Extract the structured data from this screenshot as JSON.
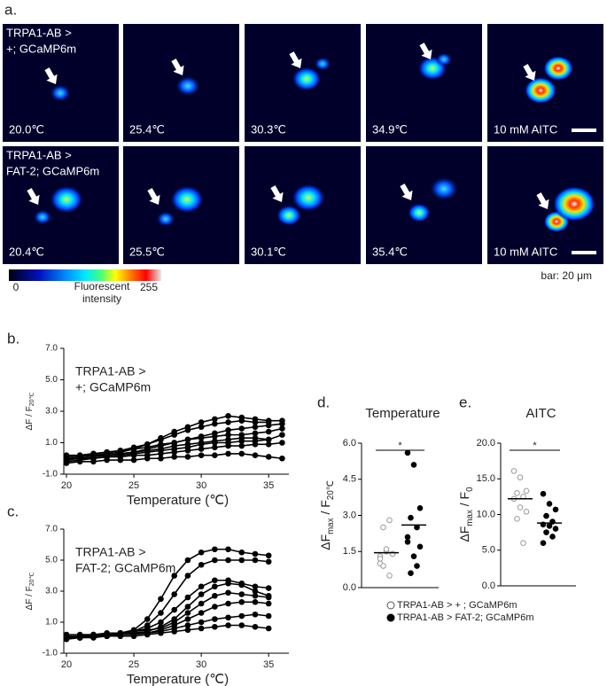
{
  "panel_labels": {
    "a": "a.",
    "b": "b.",
    "c": "c.",
    "d": "d.",
    "e": "e."
  },
  "images": {
    "rows": [
      {
        "genotype": [
          "TRPA1-AB >",
          "+; GCaMP6m"
        ],
        "labels": [
          "20.0℃",
          "25.4℃",
          "30.3℃",
          "34.9℃",
          "10 mM AITC"
        ]
      },
      {
        "genotype": [
          "TRPA1-AB >",
          "FAT-2; GCaMP6m"
        ],
        "labels": [
          "20.4℃",
          "25.5℃",
          "30.1℃",
          "35.4℃",
          "10 mM AITC"
        ]
      }
    ]
  },
  "colorbar": {
    "min": 0,
    "max": 255,
    "label": [
      "Fluorescent",
      "intensity"
    ]
  },
  "scale_bar": "bar: 20 μm",
  "legend": [
    "TRPA1-AB >     +      ; GCaMP6m",
    "TRPA1-AB > FAT-2; GCaMP6m"
  ],
  "chart_data": [
    {
      "type": "line",
      "annotation": [
        "TRPA1-AB >",
        "+; GCaMP6m"
      ],
      "xlabel": "Temperature (℃)",
      "ylabel": [
        "ΔF / F",
        "20℃"
      ],
      "color": "#000000",
      "grid": false,
      "x": [
        20,
        21,
        22,
        23,
        24,
        25,
        26,
        27,
        28,
        29,
        30,
        31,
        32,
        33,
        34,
        35,
        36
      ],
      "xlim": [
        20,
        36.5
      ],
      "xticks": [
        20,
        25,
        30,
        35
      ],
      "ylim": [
        -1,
        7
      ],
      "yticks": [
        {
          "value": -1,
          "label": "-1.0"
        },
        {
          "value": 1,
          "label": "1.0"
        },
        {
          "value": 3,
          "label": "3.0"
        },
        {
          "value": 5,
          "label": "5.0"
        },
        {
          "value": 7,
          "label": "7.0"
        }
      ],
      "series": [
        {
          "values": [
            0,
            0.1,
            0.2,
            0.3,
            0.4,
            0.6,
            0.9,
            1.3,
            1.7,
            2.0,
            2.3,
            2.5,
            2.7,
            2.6,
            2.5,
            2.4,
            2.4
          ]
        },
        {
          "values": [
            0.1,
            0.2,
            0.3,
            0.4,
            0.5,
            0.7,
            0.9,
            1.2,
            1.5,
            1.8,
            2.0,
            2.2,
            2.3,
            2.4,
            2.3,
            2.3,
            null
          ]
        },
        {
          "values": [
            -0.1,
            0,
            0.1,
            0.2,
            0.3,
            0.4,
            0.6,
            0.8,
            1.0,
            1.2,
            1.4,
            1.6,
            1.8,
            1.9,
            2.0,
            2.1,
            2.2
          ]
        },
        {
          "values": [
            0.2,
            0.2,
            0.3,
            0.4,
            0.5,
            0.6,
            0.7,
            0.9,
            1.0,
            1.2,
            1.3,
            1.4,
            1.5,
            1.5,
            1.6,
            1.7,
            1.9
          ]
        },
        {
          "values": [
            0,
            0.1,
            0.2,
            0.2,
            0.3,
            0.4,
            0.5,
            0.6,
            0.8,
            0.9,
            1.0,
            1.1,
            1.2,
            1.3,
            1.3,
            1.2,
            1.5
          ]
        },
        {
          "values": [
            -0.2,
            -0.1,
            0,
            0.1,
            0.2,
            0.3,
            0.4,
            0.5,
            0.6,
            0.7,
            0.9,
            1.0,
            1.0,
            1.1,
            1.1,
            1.2,
            null
          ]
        },
        {
          "values": [
            0,
            0,
            0,
            0.1,
            0.1,
            0.2,
            0.2,
            0.3,
            0.4,
            0.5,
            0.6,
            0.7,
            0.8,
            0.8,
            0.9,
            0.9,
            1.0
          ]
        },
        {
          "values": [
            -0.3,
            -0.2,
            -0.2,
            -0.1,
            -0.1,
            -0.1,
            0,
            0,
            0.1,
            0.1,
            0.2,
            0.2,
            0.3,
            0.3,
            0.2,
            0.1,
            0
          ]
        }
      ]
    },
    {
      "type": "line",
      "annotation": [
        "TRPA1-AB >",
        "FAT-2; GCaMP6m"
      ],
      "xlabel": "Temperature (℃)",
      "ylabel": [
        "ΔF / F",
        "20℃"
      ],
      "color": "#000000",
      "grid": false,
      "x": [
        20,
        21,
        22,
        23,
        24,
        25,
        26,
        27,
        28,
        29,
        30,
        31,
        32,
        33,
        34,
        35,
        36
      ],
      "xlim": [
        20,
        36.5
      ],
      "xticks": [
        20,
        25,
        30,
        35
      ],
      "ylim": [
        -1,
        7
      ],
      "yticks": [
        {
          "value": -1,
          "label": "-1.0"
        },
        {
          "value": 1,
          "label": "1.0"
        },
        {
          "value": 3,
          "label": "3.0"
        },
        {
          "value": 5,
          "label": "5.0"
        },
        {
          "value": 7,
          "label": "7.0"
        }
      ],
      "series": [
        {
          "values": [
            0,
            0,
            0.1,
            0.2,
            0.3,
            0.5,
            1.2,
            2.5,
            4.0,
            5.0,
            5.5,
            5.7,
            5.7,
            5.5,
            5.4,
            5.3,
            null
          ]
        },
        {
          "values": [
            0.1,
            0.1,
            0.2,
            0.2,
            0.3,
            0.4,
            0.8,
            1.6,
            2.8,
            4.0,
            4.7,
            5.0,
            5.0,
            5.0,
            5.0,
            4.9,
            null
          ]
        },
        {
          "values": [
            0,
            0.1,
            0.1,
            0.2,
            0.3,
            0.4,
            0.6,
            1.0,
            1.8,
            2.6,
            3.3,
            3.7,
            3.7,
            3.5,
            3.3,
            3.2,
            null
          ]
        },
        {
          "values": [
            0,
            0,
            0.1,
            0.1,
            0.2,
            0.3,
            0.4,
            0.7,
            1.2,
            2.0,
            2.8,
            3.3,
            3.5,
            3.4,
            3.0,
            2.7,
            null
          ]
        },
        {
          "values": [
            0.2,
            0.2,
            0.2,
            0.3,
            0.3,
            0.4,
            0.5,
            0.6,
            1.0,
            1.6,
            2.2,
            2.7,
            2.9,
            2.8,
            2.7,
            2.6,
            null
          ]
        },
        {
          "values": [
            0,
            0.1,
            0.1,
            0.2,
            0.2,
            0.3,
            0.3,
            0.5,
            0.8,
            1.2,
            1.6,
            2.0,
            2.2,
            2.3,
            2.3,
            2.2,
            null
          ]
        },
        {
          "values": [
            0,
            0,
            0.1,
            0.1,
            0.2,
            0.2,
            0.3,
            0.4,
            0.6,
            0.8,
            1.0,
            1.2,
            1.3,
            1.4,
            1.5,
            1.4,
            null
          ]
        },
        {
          "values": [
            -0.1,
            0,
            0,
            0.1,
            0.1,
            0.1,
            0.2,
            0.3,
            0.4,
            0.5,
            0.6,
            0.7,
            0.8,
            0.8,
            0.7,
            0.6,
            null
          ]
        }
      ]
    },
    {
      "type": "strip",
      "title": "Temperature",
      "annotation": "*",
      "ylabel": [
        "ΔF",
        "max",
        " / F",
        "20℃"
      ],
      "ylim": [
        0,
        6
      ],
      "yticks": [
        {
          "value": 0,
          "label": "0.0"
        },
        1.5,
        {
          "value": 3,
          "label": "3.0"
        },
        4.5,
        {
          "value": 6,
          "label": "6.0"
        }
      ],
      "series": [
        {
          "fill": "#ffffff",
          "color": "#999999",
          "mean": 1.45,
          "values": [
            1.0,
            1.5,
            1.4,
            2.5,
            2.8,
            1.3,
            1.6,
            1.4,
            0.9,
            0.5,
            1.2
          ]
        },
        {
          "fill": "#000000",
          "color": "#000000",
          "mean": 2.6,
          "values": [
            5.6,
            5.1,
            3.3,
            2.9,
            2.5,
            1.9,
            1.3,
            1.7,
            0.6,
            0.9,
            2.1
          ]
        }
      ]
    },
    {
      "type": "strip",
      "title": "AITC",
      "annotation": "*",
      "ylabel": [
        "ΔF",
        "max",
        " / F",
        "0"
      ],
      "ylim": [
        0,
        20
      ],
      "yticks": [
        {
          "value": 0,
          "label": "0.0"
        },
        {
          "value": 5,
          "label": "5.0"
        },
        {
          "value": 10,
          "label": "10.0"
        },
        {
          "value": 15,
          "label": "15.0"
        },
        {
          "value": 20,
          "label": "20.0"
        }
      ],
      "series": [
        {
          "fill": "#ffffff",
          "color": "#999999",
          "mean": 12.2,
          "values": [
            16.1,
            15.2,
            13.3,
            13.0,
            12.5,
            12.2,
            11.0,
            10.4,
            9.4,
            6.0
          ]
        },
        {
          "fill": "#000000",
          "color": "#000000",
          "mean": 8.8,
          "values": [
            12.9,
            11.5,
            10.7,
            9.8,
            9.0,
            8.6,
            8.4,
            8.0,
            7.5,
            6.9,
            6.0
          ]
        }
      ]
    }
  ]
}
